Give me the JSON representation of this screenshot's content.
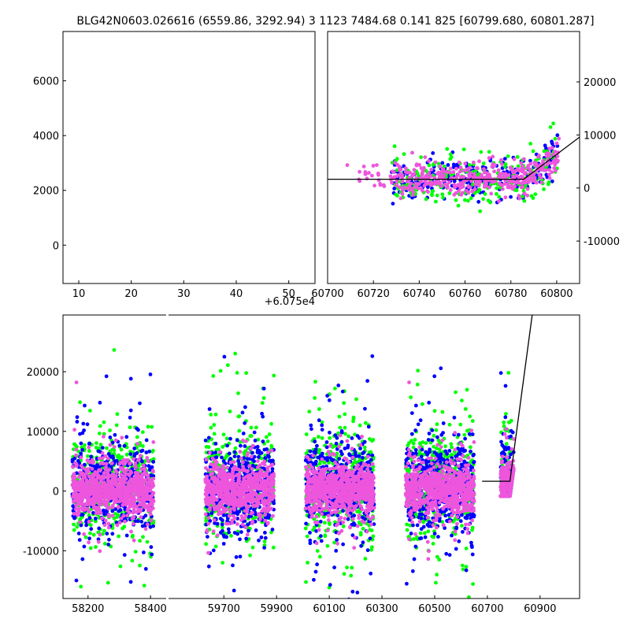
{
  "figure": {
    "title": "BLG42N0603.026616 (6559.86, 3292.94)   3 1123 7484.68 0.141 825 [60799.680, 60801.287]"
  },
  "chart_data": [
    {
      "id": "zoom_left",
      "type": "scatter",
      "title": "",
      "xlabel": "",
      "ylabel": "",
      "x_offset": 60750,
      "x_offset_label": "+6.075e4",
      "xlim": [
        7,
        55
      ],
      "ylim": [
        -1400,
        7800
      ],
      "xticks": [
        10,
        20,
        30,
        40,
        50
      ],
      "yticks": [
        0,
        2000,
        4000,
        6000
      ],
      "grid": false,
      "legend": "none",
      "series": [
        {
          "color": "#0000ff",
          "x_range": [
            9,
            51
          ],
          "baseline": 1700,
          "scatter": 1400,
          "n": 220
        },
        {
          "color": "#00ff00",
          "x_range": [
            9,
            51
          ],
          "baseline": 1700,
          "scatter": 1700,
          "n": 200
        },
        {
          "color": "#ee55dd",
          "x_range": [
            7,
            52
          ],
          "baseline": 1700,
          "scatter": 1500,
          "n": 340
        }
      ],
      "model": {
        "x": [
          7,
          35.6,
          55
        ],
        "y": [
          1650,
          1650,
          7800
        ]
      }
    },
    {
      "id": "zoom_right",
      "type": "scatter",
      "title": "",
      "xlabel": "",
      "ylabel": "",
      "xlim": [
        60700,
        60810
      ],
      "ylim": [
        -18000,
        29500
      ],
      "xticks": [
        60700,
        60720,
        60740,
        60760,
        60780,
        60800
      ],
      "yticks": [
        -10000,
        0,
        10000,
        20000
      ],
      "grid": false,
      "legend": "none",
      "series": [
        {
          "color": "#0000ff",
          "x_range": [
            60728,
            60801
          ],
          "baseline": 1700,
          "scatter": 1800,
          "n": 260
        },
        {
          "color": "#00ff00",
          "x_range": [
            60728,
            60801
          ],
          "baseline": 1700,
          "scatter": 2600,
          "n": 220
        },
        {
          "color": "#ee55dd",
          "x_range": [
            60708,
            60801
          ],
          "baseline": 1700,
          "scatter": 1500,
          "n": 400
        }
      ],
      "model": {
        "x": [
          60700,
          60785.6,
          60810
        ],
        "y": [
          1650,
          1650,
          9600
        ]
      }
    },
    {
      "id": "full",
      "type": "scatter",
      "title": "",
      "xlabel": "",
      "ylabel": "",
      "ylim": [
        -18000,
        29500
      ],
      "yticks": [
        -10000,
        0,
        10000,
        20000
      ],
      "grid": false,
      "legend": "none",
      "broken_x_axis": true,
      "segments": [
        {
          "xlim": [
            58120,
            58450
          ],
          "xticks": [
            58200,
            58400
          ],
          "seasons": [
            [
              58150,
              58410
            ]
          ]
        },
        {
          "xlim": [
            59490,
            61050
          ],
          "xticks": [
            59700,
            59900,
            60100,
            60300,
            60500,
            60700,
            60900
          ],
          "seasons": [
            [
              59630,
              59890
            ],
            [
              60010,
              60270
            ],
            [
              60390,
              60650
            ],
            [
              60750,
              60800
            ]
          ]
        }
      ],
      "series": [
        {
          "color": "#00ff00",
          "baseline": 700,
          "scatter": 4200,
          "n_per_season": 420
        },
        {
          "color": "#0000ff",
          "baseline": 900,
          "scatter": 3600,
          "n_per_season": 460
        },
        {
          "color": "#ee55dd",
          "baseline": 300,
          "scatter": 1900,
          "n_per_season": 760
        }
      ],
      "model": {
        "x": [
          60680,
          60785.6,
          60870
        ],
        "y": [
          1650,
          1650,
          29500
        ]
      }
    }
  ]
}
